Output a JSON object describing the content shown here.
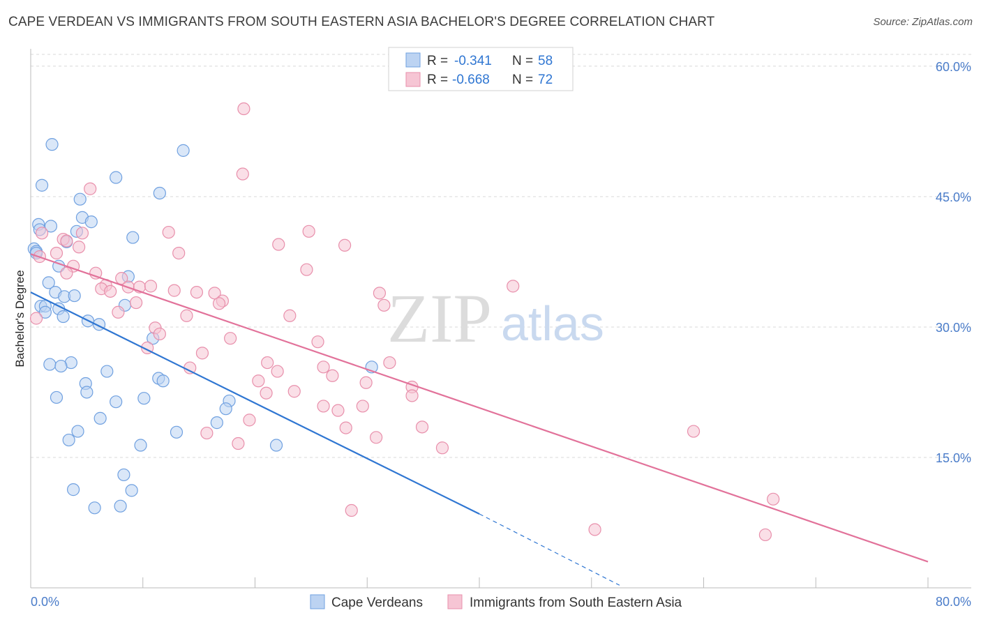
{
  "header": {
    "title": "CAPE VERDEAN VS IMMIGRANTS FROM SOUTH EASTERN ASIA BACHELOR'S DEGREE CORRELATION CHART",
    "source": "Source: ZipAtlas.com"
  },
  "legend": {
    "rows": [
      {
        "r_label": "R =",
        "r_value": "-0.341",
        "n_label": "N =",
        "n_value": "58"
      },
      {
        "r_label": "R =",
        "r_value": "-0.668",
        "n_label": "N =",
        "n_value": "72"
      }
    ]
  },
  "watermark": {
    "zip": "ZIP",
    "atlas": "atlas"
  },
  "colors": {
    "blue": "#6fa0e0",
    "blue_fill": "#bcd3f2",
    "blue_line": "#2f76d2",
    "pink": "#e88fab",
    "pink_fill": "#f6c5d4",
    "pink_line": "#e2729a",
    "label": "#4a7cc9",
    "grid": "#d8d8d8"
  },
  "chart_data": {
    "type": "scatter",
    "title": "CAPE VERDEAN VS IMMIGRANTS FROM SOUTH EASTERN ASIA BACHELOR'S DEGREE CORRELATION CHART",
    "xlabel": "",
    "ylabel": "Bachelor's Degree",
    "xlim": [
      0,
      80
    ],
    "ylim": [
      0,
      62
    ],
    "x_tick_labels": [
      "0.0%",
      "80.0%"
    ],
    "y_ticks": [
      15,
      30,
      45,
      60
    ],
    "y_tick_labels": [
      "15.0%",
      "30.0%",
      "45.0%",
      "60.0%"
    ],
    "series": [
      {
        "name": "Cape Verdeans",
        "color": "#6fa0e0",
        "points": [
          [
            1.9,
            51.0
          ],
          [
            1.0,
            46.3
          ],
          [
            7.6,
            47.2
          ],
          [
            13.6,
            50.3
          ],
          [
            11.5,
            45.4
          ],
          [
            4.4,
            44.7
          ],
          [
            4.6,
            42.6
          ],
          [
            5.4,
            42.1
          ],
          [
            0.7,
            41.8
          ],
          [
            1.8,
            41.6
          ],
          [
            0.8,
            41.2
          ],
          [
            4.1,
            41.0
          ],
          [
            9.1,
            40.3
          ],
          [
            3.2,
            39.8
          ],
          [
            0.3,
            39.0
          ],
          [
            0.5,
            38.7
          ],
          [
            2.5,
            37.0
          ],
          [
            8.7,
            35.8
          ],
          [
            1.6,
            35.1
          ],
          [
            2.2,
            34.0
          ],
          [
            3.0,
            33.5
          ],
          [
            3.9,
            33.6
          ],
          [
            0.9,
            32.4
          ],
          [
            1.3,
            32.4
          ],
          [
            2.5,
            32.1
          ],
          [
            1.3,
            31.7
          ],
          [
            2.9,
            31.2
          ],
          [
            5.1,
            30.7
          ],
          [
            6.1,
            30.3
          ],
          [
            8.4,
            32.5
          ],
          [
            10.9,
            28.7
          ],
          [
            1.7,
            25.7
          ],
          [
            3.6,
            25.9
          ],
          [
            2.7,
            25.5
          ],
          [
            6.8,
            24.9
          ],
          [
            11.4,
            24.1
          ],
          [
            11.8,
            23.8
          ],
          [
            4.9,
            23.5
          ],
          [
            5.0,
            22.5
          ],
          [
            2.3,
            21.9
          ],
          [
            7.6,
            21.4
          ],
          [
            10.1,
            21.8
          ],
          [
            17.7,
            21.5
          ],
          [
            17.4,
            20.6
          ],
          [
            6.2,
            19.5
          ],
          [
            16.6,
            19.0
          ],
          [
            4.2,
            18.0
          ],
          [
            13.0,
            17.9
          ],
          [
            3.4,
            17.0
          ],
          [
            9.8,
            16.4
          ],
          [
            21.9,
            16.4
          ],
          [
            8.3,
            13.0
          ],
          [
            3.8,
            11.3
          ],
          [
            9.0,
            11.2
          ],
          [
            5.7,
            9.2
          ],
          [
            8.0,
            9.4
          ],
          [
            30.4,
            25.4
          ],
          [
            0.5,
            38.5
          ]
        ]
      },
      {
        "name": "Immigrants from South Eastern Asia",
        "color": "#e88fab",
        "points": [
          [
            19.0,
            55.1
          ],
          [
            18.9,
            47.6
          ],
          [
            5.3,
            45.9
          ],
          [
            12.3,
            40.9
          ],
          [
            24.8,
            41.0
          ],
          [
            4.6,
            40.8
          ],
          [
            1.0,
            40.8
          ],
          [
            2.9,
            40.1
          ],
          [
            3.2,
            39.9
          ],
          [
            4.3,
            39.2
          ],
          [
            22.1,
            39.5
          ],
          [
            28.0,
            39.4
          ],
          [
            13.2,
            38.5
          ],
          [
            2.3,
            38.5
          ],
          [
            0.8,
            38.1
          ],
          [
            24.6,
            36.6
          ],
          [
            3.8,
            37.0
          ],
          [
            3.2,
            36.2
          ],
          [
            5.8,
            36.2
          ],
          [
            8.1,
            35.6
          ],
          [
            6.7,
            34.8
          ],
          [
            6.3,
            34.4
          ],
          [
            8.7,
            34.6
          ],
          [
            9.7,
            34.6
          ],
          [
            10.7,
            34.7
          ],
          [
            43.0,
            34.7
          ],
          [
            7.1,
            34.1
          ],
          [
            12.8,
            34.2
          ],
          [
            14.8,
            34.0
          ],
          [
            16.4,
            33.9
          ],
          [
            17.1,
            33.0
          ],
          [
            16.8,
            32.7
          ],
          [
            31.1,
            33.9
          ],
          [
            9.4,
            32.8
          ],
          [
            7.8,
            31.7
          ],
          [
            31.5,
            32.5
          ],
          [
            13.9,
            31.3
          ],
          [
            23.1,
            31.3
          ],
          [
            0.5,
            31.0
          ],
          [
            11.1,
            29.9
          ],
          [
            11.5,
            29.2
          ],
          [
            17.8,
            28.7
          ],
          [
            25.6,
            28.3
          ],
          [
            10.4,
            27.6
          ],
          [
            15.3,
            27.0
          ],
          [
            22.0,
            24.9
          ],
          [
            21.1,
            25.9
          ],
          [
            32.0,
            25.9
          ],
          [
            26.1,
            25.4
          ],
          [
            14.2,
            25.3
          ],
          [
            26.9,
            24.4
          ],
          [
            20.3,
            23.8
          ],
          [
            29.9,
            23.6
          ],
          [
            34.0,
            23.1
          ],
          [
            23.5,
            22.6
          ],
          [
            21.0,
            22.4
          ],
          [
            34.0,
            22.1
          ],
          [
            26.1,
            20.9
          ],
          [
            27.4,
            20.4
          ],
          [
            29.6,
            20.9
          ],
          [
            19.5,
            19.3
          ],
          [
            28.1,
            18.4
          ],
          [
            34.9,
            18.5
          ],
          [
            15.7,
            17.8
          ],
          [
            30.8,
            17.3
          ],
          [
            18.5,
            16.6
          ],
          [
            36.7,
            16.1
          ],
          [
            59.1,
            18.0
          ],
          [
            28.6,
            8.9
          ],
          [
            66.2,
            10.2
          ],
          [
            50.3,
            6.7
          ],
          [
            65.5,
            6.1
          ]
        ]
      }
    ],
    "trendlines": [
      {
        "series": "Cape Verdeans",
        "solid": [
          [
            0,
            34.0
          ],
          [
            40,
            8.5
          ]
        ],
        "dashed": [
          [
            40,
            8.5
          ],
          [
            52.5,
            0.3
          ]
        ]
      },
      {
        "series": "Immigrants from South Eastern Asia",
        "solid": [
          [
            0,
            38.4
          ],
          [
            80,
            3.0
          ]
        ]
      }
    ]
  }
}
